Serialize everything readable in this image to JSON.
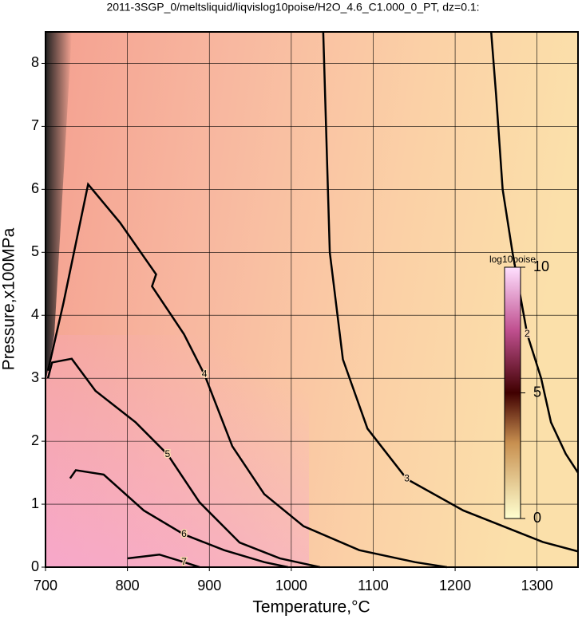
{
  "chart_data": {
    "type": "contour",
    "title": "2011-3SGP_0/meltsliquid/liqvislog10poise/H2O_4.6_C1.000_0_PT, dz=0.1:",
    "xlabel": "Temperature,°C",
    "ylabel": "Pressure,x100MPa",
    "xlim": [
      700,
      1350
    ],
    "ylim": [
      0,
      8.5
    ],
    "xticks": [
      700,
      800,
      900,
      1000,
      1100,
      1200,
      1300
    ],
    "yticks": [
      0,
      1,
      2,
      3,
      4,
      5,
      6,
      7,
      8
    ],
    "grid": true,
    "line_color": "#000000",
    "colorbar": {
      "label": "log10poise",
      "lim": [
        0,
        10
      ],
      "ticks": [
        0,
        5,
        10
      ]
    },
    "contours": [
      {
        "level": 2,
        "x": [
          1244,
          1250,
          1258,
          1270,
          1288,
          1305,
          1317,
          1335,
          1350
        ],
        "y": [
          8.5,
          7.5,
          6,
          5,
          3.7,
          3,
          2.3,
          1.8,
          1.5
        ]
      },
      {
        "level": 3,
        "x": [
          1039,
          1047,
          1063,
          1093,
          1141,
          1210,
          1307,
          1350
        ],
        "y": [
          8.5,
          5.0,
          3.3,
          2.2,
          1.4,
          0.9,
          0.4,
          0.25
        ]
      },
      {
        "level": 4,
        "x": [
          703,
          722,
          752,
          791,
          835,
          830,
          869,
          894,
          928,
          967,
          1015,
          1083,
          1151,
          1190
        ],
        "y": [
          3.12,
          4.2,
          6.08,
          5.47,
          4.65,
          4.46,
          3.7,
          3.06,
          1.92,
          1.16,
          0.65,
          0.27,
          0.08,
          0
        ]
      },
      {
        "level": 5,
        "x": [
          703,
          708,
          732,
          761,
          810,
          849,
          888,
          937,
          986,
          1035
        ],
        "y": [
          3.0,
          3.25,
          3.31,
          2.8,
          2.3,
          1.79,
          1.03,
          0.39,
          0.14,
          0
        ]
      },
      {
        "level": 6,
        "x": [
          730,
          737,
          771,
          820,
          869,
          918,
          967,
          996
        ],
        "y": [
          1.41,
          1.54,
          1.47,
          0.9,
          0.52,
          0.27,
          0.08,
          0
        ]
      },
      {
        "level": 7,
        "x": [
          800,
          839,
          869,
          888
        ],
        "y": [
          0.14,
          0.2,
          0.08,
          0
        ]
      }
    ]
  }
}
